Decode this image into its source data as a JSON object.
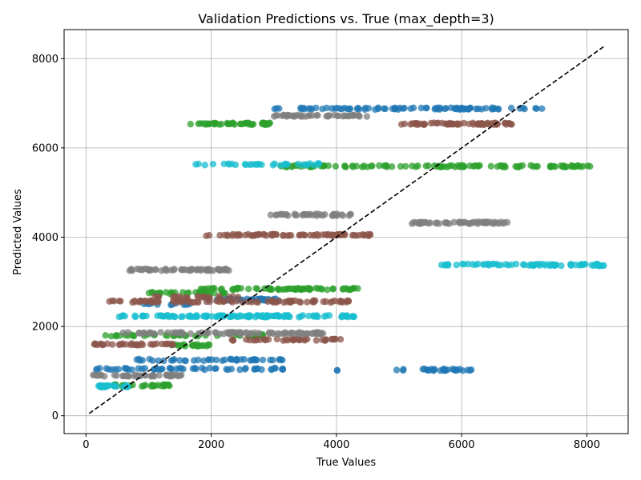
{
  "chart_data": {
    "type": "scatter",
    "title": "Validation Predictions vs. True (max_depth=3)",
    "xlabel": "True Values",
    "ylabel": "Predicted Values",
    "xlim": [
      -350,
      8660
    ],
    "ylim": [
      -400,
      8650
    ],
    "xticks": [
      0,
      2000,
      4000,
      6000,
      8000
    ],
    "yticks": [
      0,
      2000,
      4000,
      6000,
      8000
    ],
    "xtick_labels": [
      "0",
      "2000",
      "4000",
      "6000",
      "8000"
    ],
    "ytick_labels": [
      "0",
      "2000",
      "4000",
      "6000",
      "8000"
    ],
    "grid": true,
    "point_alpha": 0.75,
    "reference_line": {
      "style": "dashed",
      "color": "#000000",
      "from": [
        50,
        50
      ],
      "to": [
        8270,
        8270
      ]
    },
    "series": [
      {
        "color": "#1f77b4",
        "clusters": [
          {
            "y": 6880,
            "x_min": 2950,
            "x_max": 7300,
            "n": 90
          },
          {
            "y": 2600,
            "x_min": 1900,
            "x_max": 3100,
            "n": 40
          },
          {
            "y": 1250,
            "x_min": 700,
            "x_max": 3150,
            "n": 45
          },
          {
            "y": 1050,
            "x_min": 100,
            "x_max": 3250,
            "n": 55
          },
          {
            "y": 1020,
            "x_min": 4000,
            "x_max": 4050,
            "n": 2
          },
          {
            "y": 1030,
            "x_min": 4950,
            "x_max": 6200,
            "n": 30
          },
          {
            "y": 2500,
            "x_min": 800,
            "x_max": 1750,
            "n": 12
          }
        ]
      },
      {
        "color": "#2ca02c",
        "clusters": [
          {
            "y": 6540,
            "x_min": 1650,
            "x_max": 2950,
            "n": 50
          },
          {
            "y": 5590,
            "x_min": 3100,
            "x_max": 8150,
            "n": 110
          },
          {
            "y": 2840,
            "x_min": 1800,
            "x_max": 4350,
            "n": 70
          },
          {
            "y": 2750,
            "x_min": 1000,
            "x_max": 2300,
            "n": 30
          },
          {
            "y": 1800,
            "x_min": 200,
            "x_max": 2900,
            "n": 45
          },
          {
            "y": 1580,
            "x_min": 1350,
            "x_max": 2000,
            "n": 20
          },
          {
            "y": 680,
            "x_min": 400,
            "x_max": 1400,
            "n": 30
          }
        ]
      },
      {
        "color": "#8c564b",
        "clusters": [
          {
            "y": 6540,
            "x_min": 5000,
            "x_max": 6800,
            "n": 70
          },
          {
            "y": 4050,
            "x_min": 1900,
            "x_max": 4550,
            "n": 75
          },
          {
            "y": 2560,
            "x_min": 200,
            "x_max": 4300,
            "n": 90
          },
          {
            "y": 2660,
            "x_min": 1000,
            "x_max": 2500,
            "n": 25
          },
          {
            "y": 1700,
            "x_min": 2300,
            "x_max": 4100,
            "n": 40
          },
          {
            "y": 1600,
            "x_min": 100,
            "x_max": 1400,
            "n": 35
          }
        ]
      },
      {
        "color": "#7f7f7f",
        "clusters": [
          {
            "y": 6720,
            "x_min": 3000,
            "x_max": 4500,
            "n": 45
          },
          {
            "y": 4500,
            "x_min": 2950,
            "x_max": 4250,
            "n": 40
          },
          {
            "y": 4320,
            "x_min": 5200,
            "x_max": 6750,
            "n": 55
          },
          {
            "y": 3270,
            "x_min": 550,
            "x_max": 2300,
            "n": 55
          },
          {
            "y": 1850,
            "x_min": 550,
            "x_max": 3800,
            "n": 85
          },
          {
            "y": 900,
            "x_min": 50,
            "x_max": 1550,
            "n": 45
          }
        ]
      },
      {
        "color": "#17becf",
        "clusters": [
          {
            "y": 5630,
            "x_min": 1700,
            "x_max": 3800,
            "n": 35
          },
          {
            "y": 3380,
            "x_min": 5650,
            "x_max": 8270,
            "n": 70
          },
          {
            "y": 2230,
            "x_min": 450,
            "x_max": 4350,
            "n": 120
          },
          {
            "y": 660,
            "x_min": 200,
            "x_max": 700,
            "n": 25
          }
        ]
      }
    ]
  }
}
